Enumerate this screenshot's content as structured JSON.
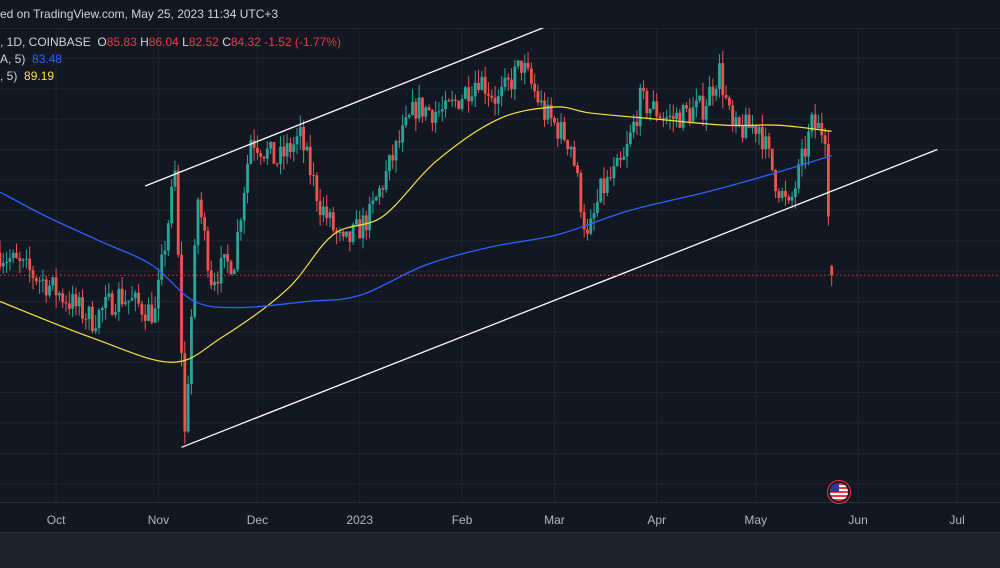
{
  "header": {
    "published_text": "ed on TradingView.com, May 25, 2023 11:34 UTC+3"
  },
  "legend": {
    "symbol_text": ", 1D, COINBASE",
    "open_label": "O",
    "open_value": "85.83",
    "high_label": "H",
    "high_value": "86.04",
    "low_label": "L",
    "low_value": "82.52",
    "close_label": "C",
    "close_value": "84.32",
    "change_text": "-1.52 (-1.77%)",
    "ma1_label": "A, 5)",
    "ma1_value": "83.48",
    "ma2_label": ", 5)",
    "ma2_value": "89.19"
  },
  "colors": {
    "background": "#131722",
    "up": "#26a69a",
    "down": "#ef5350",
    "ma_slow": "#2962ff",
    "ma_fast": "#f7e33a",
    "channel": "#ffffff",
    "last_price_line": "#f23645"
  },
  "x_axis": {
    "labels": [
      "Oct",
      "Nov",
      "Dec",
      "2023",
      "Feb",
      "Mar",
      "Apr",
      "May",
      "Jun",
      "Jul"
    ]
  },
  "chart_data": {
    "type": "candlestick",
    "x_range": [
      "2022-09-14",
      "2023-07-14"
    ],
    "y_range": [
      47,
      125
    ],
    "last_close": 84.32,
    "anchors": [
      {
        "date": "2022-09-14",
        "price": 88
      },
      {
        "date": "2022-09-28",
        "price": 83
      },
      {
        "date": "2022-10-12",
        "price": 77
      },
      {
        "date": "2022-10-20",
        "price": 81
      },
      {
        "date": "2022-10-31",
        "price": 78
      },
      {
        "date": "2022-11-06",
        "price": 101
      },
      {
        "date": "2022-11-09",
        "price": 58
      },
      {
        "date": "2022-11-13",
        "price": 97
      },
      {
        "date": "2022-11-17",
        "price": 84
      },
      {
        "date": "2022-11-24",
        "price": 87
      },
      {
        "date": "2022-11-29",
        "price": 107
      },
      {
        "date": "2022-12-07",
        "price": 103
      },
      {
        "date": "2022-12-14",
        "price": 107
      },
      {
        "date": "2022-12-20",
        "price": 96
      },
      {
        "date": "2022-12-27",
        "price": 89
      },
      {
        "date": "2023-01-04",
        "price": 94
      },
      {
        "date": "2023-01-12",
        "price": 105
      },
      {
        "date": "2023-01-18",
        "price": 112
      },
      {
        "date": "2023-01-27",
        "price": 111
      },
      {
        "date": "2023-02-06",
        "price": 117
      },
      {
        "date": "2023-02-12",
        "price": 113
      },
      {
        "date": "2023-02-19",
        "price": 119
      },
      {
        "date": "2023-02-26",
        "price": 111
      },
      {
        "date": "2023-03-06",
        "price": 106
      },
      {
        "date": "2023-03-11",
        "price": 90
      },
      {
        "date": "2023-03-15",
        "price": 98
      },
      {
        "date": "2023-03-22",
        "price": 103
      },
      {
        "date": "2023-03-27",
        "price": 113
      },
      {
        "date": "2023-04-05",
        "price": 110
      },
      {
        "date": "2023-04-15",
        "price": 112
      },
      {
        "date": "2023-04-20",
        "price": 118
      },
      {
        "date": "2023-04-24",
        "price": 108
      },
      {
        "date": "2023-05-02",
        "price": 109
      },
      {
        "date": "2023-05-07",
        "price": 100
      },
      {
        "date": "2023-05-11",
        "price": 95
      },
      {
        "date": "2023-05-18",
        "price": 109
      },
      {
        "date": "2023-05-22",
        "price": 108
      },
      {
        "date": "2023-05-24",
        "price": 84.32
      }
    ],
    "ma_fast_points": [
      {
        "date": "2022-09-14",
        "price": 80
      },
      {
        "date": "2022-10-12",
        "price": 74
      },
      {
        "date": "2022-11-05",
        "price": 70
      },
      {
        "date": "2022-11-20",
        "price": 74
      },
      {
        "date": "2022-12-10",
        "price": 82
      },
      {
        "date": "2022-12-24",
        "price": 91
      },
      {
        "date": "2023-01-08",
        "price": 94
      },
      {
        "date": "2023-01-24",
        "price": 103
      },
      {
        "date": "2023-02-12",
        "price": 110
      },
      {
        "date": "2023-03-01",
        "price": 112
      },
      {
        "date": "2023-03-12",
        "price": 111
      },
      {
        "date": "2023-04-01",
        "price": 110
      },
      {
        "date": "2023-04-22",
        "price": 109
      },
      {
        "date": "2023-05-08",
        "price": 109
      },
      {
        "date": "2023-05-24",
        "price": 108
      }
    ],
    "ma_slow_points": [
      {
        "date": "2022-09-14",
        "price": 98
      },
      {
        "date": "2022-09-28",
        "price": 94
      },
      {
        "date": "2022-10-14",
        "price": 90
      },
      {
        "date": "2022-10-30",
        "price": 86
      },
      {
        "date": "2022-11-12",
        "price": 80
      },
      {
        "date": "2022-11-26",
        "price": 79
      },
      {
        "date": "2022-12-16",
        "price": 80
      },
      {
        "date": "2023-01-01",
        "price": 81
      },
      {
        "date": "2023-01-21",
        "price": 86
      },
      {
        "date": "2023-02-10",
        "price": 89
      },
      {
        "date": "2023-03-02",
        "price": 91
      },
      {
        "date": "2023-03-24",
        "price": 95
      },
      {
        "date": "2023-04-16",
        "price": 98
      },
      {
        "date": "2023-05-06",
        "price": 101
      },
      {
        "date": "2023-05-24",
        "price": 104
      }
    ],
    "channel_upper": [
      {
        "date": "2022-10-28",
        "price": 99
      },
      {
        "date": "2023-04-22",
        "price": 137
      }
    ],
    "channel_lower": [
      {
        "date": "2022-11-08",
        "price": 56
      },
      {
        "date": "2023-06-25",
        "price": 105
      }
    ]
  }
}
